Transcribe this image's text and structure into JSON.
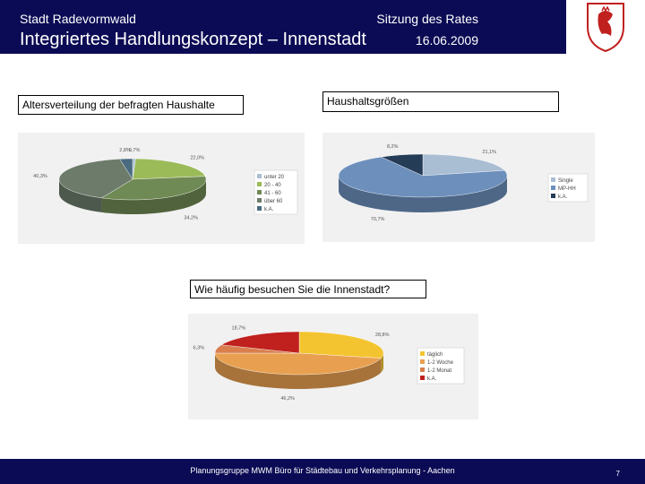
{
  "header": {
    "org": "Stadt Radevormwald",
    "title": "Integriertes Handlungskonzept – Innenstadt",
    "meeting": "Sitzung des Rates",
    "date": "16.06.2009"
  },
  "labels": {
    "age": "Altersverteilung der befragten Haushalte",
    "household": "Haushaltsgrößen",
    "visits": "Wie häufig besuchen Sie die Innenstadt?"
  },
  "footer": {
    "text": "Planungsgruppe MWM Büro für Städtebau und Verkehrsplanung - Aachen",
    "page": "7"
  },
  "colors": {
    "header_bg": "#0b0b55"
  },
  "chart_data": [
    {
      "type": "pie",
      "title": "Altersverteilung der befragten Haushalte",
      "categories": [
        "unter 20",
        "20 - 40",
        "41 - 60",
        "über 60",
        "k.A."
      ],
      "values": [
        0.7,
        22.0,
        34.2,
        40.3,
        2.8
      ],
      "value_labels": [
        "0,7%",
        "22,0%",
        "34,2%",
        "40,3%",
        "2,8%"
      ],
      "colors": [
        "#a9bfd0",
        "#9bbb59",
        "#6f8a54",
        "#6d7b6b",
        "#4a6a80"
      ],
      "legend": "right"
    },
    {
      "type": "pie",
      "title": "Haushaltsgrößen",
      "categories": [
        "Single",
        "MP-HH",
        "k.A."
      ],
      "values": [
        21.1,
        70.7,
        8.2
      ],
      "value_labels": [
        "21,1%",
        "70,7%",
        "8,2%"
      ],
      "colors": [
        "#a9bdd3",
        "#6d8fbc",
        "#243c56"
      ],
      "legend": "right"
    },
    {
      "type": "pie",
      "title": "Wie häufig besuchen Sie die Innenstadt?",
      "categories": [
        "täglich",
        "1-2 Woche",
        "1-2 Monat",
        "k.A."
      ],
      "values": [
        28.8,
        46.2,
        6.3,
        18.7
      ],
      "value_labels": [
        "28,8%",
        "46,2%",
        "6,3%",
        "18,7%"
      ],
      "colors": [
        "#f4c430",
        "#e8a050",
        "#d97f4e",
        "#c0201e"
      ],
      "legend": "right"
    }
  ]
}
